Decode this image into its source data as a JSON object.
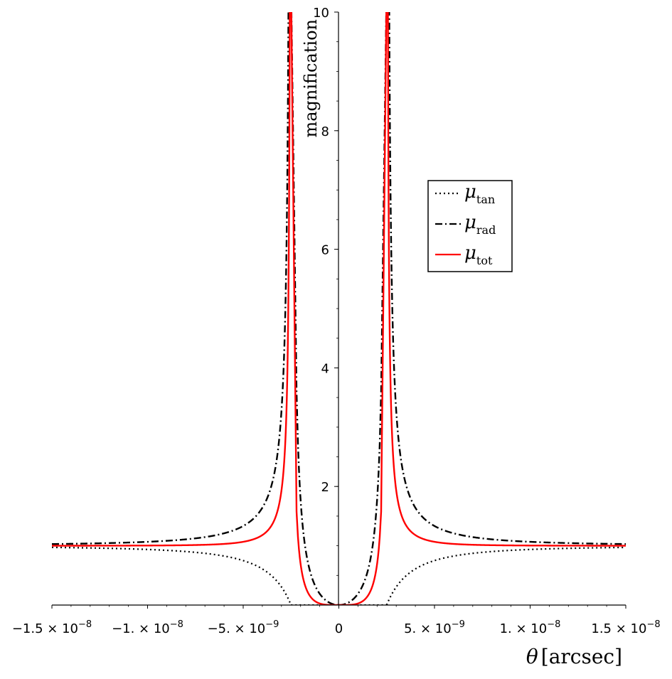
{
  "chart_data": {
    "type": "line",
    "xlabel_symbol": "θ",
    "xlabel_unit": "[arcsec]",
    "ylabel": "magnification",
    "xlim": [
      -1.5e-08,
      1.5e-08
    ],
    "ylim": [
      0,
      10
    ],
    "x_ticks": [
      {
        "value": -1.5e-08,
        "mantissa": "−1.5",
        "exp": "−8"
      },
      {
        "value": -1e-08,
        "mantissa": "−1.",
        "exp": "−8"
      },
      {
        "value": -5e-09,
        "mantissa": "−5.",
        "exp": "−9"
      },
      {
        "value": 0,
        "mantissa": "0",
        "exp": ""
      },
      {
        "value": 5e-09,
        "mantissa": "5.",
        "exp": "−9"
      },
      {
        "value": 1e-08,
        "mantissa": "1.",
        "exp": "−8"
      },
      {
        "value": 1.5e-08,
        "mantissa": "1.5",
        "exp": "−8"
      }
    ],
    "y_ticks": [
      2,
      4,
      6,
      8,
      10
    ],
    "grid": false,
    "legend_position": "right",
    "critical_theta_arcsec": 2.5e-09,
    "series": [
      {
        "name_base": "μ",
        "name_sub": "tan",
        "color": "#000000",
        "dash": "dotted",
        "x": [
          -1.5e-08,
          -1e-08,
          -5e-09,
          -3e-09,
          -2e-09,
          -1e-09,
          0,
          1e-09,
          2e-09,
          3e-09,
          5e-09,
          1e-08,
          1.5e-08
        ],
        "y": [
          0.97,
          0.94,
          0.76,
          0.41,
          0.14,
          0.02,
          0,
          0.02,
          0.14,
          0.41,
          0.76,
          0.94,
          0.97
        ]
      },
      {
        "name_base": "μ",
        "name_sub": "rad",
        "color": "#000000",
        "dash": "dashdot",
        "x": [
          -1.5e-08,
          -1e-08,
          -5e-09,
          -3e-09,
          -2.7e-09,
          -2.6e-09,
          -2.4e-09,
          -2.3e-09,
          -2e-09,
          -1e-09,
          0,
          1e-09,
          2e-09,
          2.3e-09,
          2.4e-09,
          2.6e-09,
          2.7e-09,
          3e-09,
          5e-09,
          1e-08,
          1.5e-08
        ],
        "y": [
          1.03,
          1.07,
          1.33,
          3.27,
          7.0,
          10.0,
          10.0,
          6.0,
          2.5,
          0.34,
          0,
          0.34,
          2.5,
          6.0,
          10.0,
          10.0,
          7.0,
          3.27,
          1.33,
          1.07,
          1.03
        ]
      },
      {
        "name_base": "μ",
        "name_sub": "tot",
        "color": "#ff0000",
        "dash": "solid",
        "x": [
          -1.5e-08,
          -1e-08,
          -5e-09,
          -3.5e-09,
          -3e-09,
          -2.8e-09,
          -2.7e-09,
          -2.6e-09,
          -2.4e-09,
          -2.3e-09,
          -2.2e-09,
          -2e-09,
          -1.5e-09,
          -1e-09,
          0,
          1e-09,
          1.5e-09,
          2e-09,
          2.2e-09,
          2.3e-09,
          2.4e-09,
          2.6e-09,
          2.7e-09,
          2.8e-09,
          3e-09,
          3.5e-09,
          5e-09,
          1e-08,
          1.5e-08
        ],
        "y": [
          1.0,
          1.01,
          1.02,
          1.12,
          1.34,
          1.9,
          3.5,
          10.0,
          10.0,
          3.2,
          1.6,
          0.5,
          0.12,
          0.03,
          0,
          0.03,
          0.12,
          0.5,
          1.6,
          3.2,
          10.0,
          10.0,
          3.5,
          1.9,
          1.34,
          1.12,
          1.02,
          1.01,
          1.0
        ]
      }
    ]
  }
}
